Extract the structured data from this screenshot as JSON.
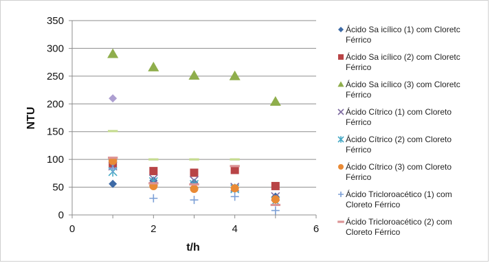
{
  "chart_data": {
    "type": "scatter",
    "xlabel": "t/h",
    "ylabel": "NTU",
    "xlim": [
      0,
      6
    ],
    "ylim": [
      0,
      350
    ],
    "x_ticks": [
      0,
      2,
      4,
      6
    ],
    "y_ticks": [
      0,
      50,
      100,
      150,
      200,
      250,
      300,
      350
    ],
    "grid": "horizontal",
    "legend_position": "right",
    "series": [
      {
        "name": [
          "Ácido Sa icílico (1) com Cloretc",
          "Férrico"
        ],
        "marker": "diamond",
        "color": "#3d6aa6",
        "points": [
          [
            1,
            56
          ],
          [
            2,
            62
          ],
          [
            3,
            58
          ],
          [
            4,
            49
          ],
          [
            5,
            33
          ]
        ]
      },
      {
        "name": [
          "Ácido Sa icílico (2) com Cloretc",
          "Férrico"
        ],
        "marker": "square",
        "color": "#b84446",
        "points": [
          [
            1,
            93
          ],
          [
            2,
            79
          ],
          [
            3,
            76
          ],
          [
            4,
            81
          ],
          [
            5,
            52
          ]
        ]
      },
      {
        "name": [
          "Ácido Sa icílico (3) com Cloretc",
          "Férrico"
        ],
        "marker": "triangle",
        "color": "#8fae4c",
        "points": [
          [
            1,
            290
          ],
          [
            2,
            266
          ],
          [
            3,
            251
          ],
          [
            4,
            250
          ],
          [
            5,
            204
          ]
        ]
      },
      {
        "name": [
          "Ácido Cítrico (1) com Cloreto",
          "Férrico"
        ],
        "marker": "x",
        "color": "#7d6aa0",
        "points": [
          [
            1,
            88
          ],
          [
            2,
            65
          ],
          [
            3,
            62
          ],
          [
            4,
            50
          ],
          [
            5,
            33
          ]
        ]
      },
      {
        "name": [
          "Ácido Cítrico (2) com Cloreto",
          "Férrico"
        ],
        "marker": "star",
        "color": "#46a9c5",
        "points": [
          [
            1,
            78
          ],
          [
            2,
            60
          ],
          [
            3,
            55
          ],
          [
            4,
            47
          ],
          [
            5,
            25
          ]
        ]
      },
      {
        "name": [
          "Ácido Cítrico (3) com Cloreto",
          "Férrico"
        ],
        "marker": "circle",
        "color": "#e98a35",
        "points": [
          [
            1,
            97
          ],
          [
            2,
            52
          ],
          [
            3,
            47
          ],
          [
            4,
            48
          ],
          [
            5,
            28
          ]
        ]
      },
      {
        "name": [
          "Ácido Tricloroacético (1) com",
          "Cloreto Férrico"
        ],
        "marker": "plus",
        "color": "#7b9fd6",
        "points": [
          [
            1,
            83
          ],
          [
            2,
            30
          ],
          [
            3,
            27
          ],
          [
            4,
            33
          ],
          [
            5,
            8
          ]
        ]
      },
      {
        "name": [
          "Ácido Tricloroacético (2) com",
          "Cloreto Férrico"
        ],
        "marker": "dash",
        "color": "#dc9496",
        "points": [
          [
            1,
            103
          ],
          [
            2,
            57
          ],
          [
            3,
            55
          ],
          [
            4,
            88
          ],
          [
            5,
            18
          ]
        ]
      },
      {
        "name": "",
        "marker": "diamond",
        "color": "#ad9fd1",
        "in_legend": false,
        "points": [
          [
            1,
            210
          ]
        ]
      },
      {
        "name": "",
        "marker": "dash",
        "color": "#c5db8f",
        "in_legend": false,
        "points": [
          [
            1,
            151
          ],
          [
            2,
            100
          ],
          [
            3,
            100
          ],
          [
            4,
            100
          ]
        ]
      }
    ]
  }
}
